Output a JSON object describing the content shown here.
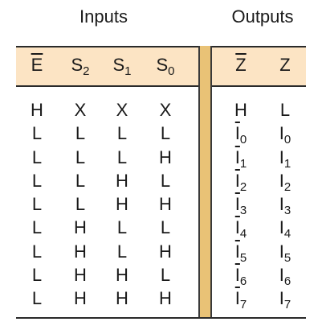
{
  "groups": {
    "inputs": "Inputs",
    "outputs": "Outputs"
  },
  "headers": [
    {
      "text": "E",
      "sub": "",
      "overbar": true
    },
    {
      "text": "S",
      "sub": "2",
      "overbar": false
    },
    {
      "text": "S",
      "sub": "1",
      "overbar": false
    },
    {
      "text": "S",
      "sub": "0",
      "overbar": false
    },
    {
      "text": "Z",
      "sub": "",
      "overbar": true
    },
    {
      "text": "Z",
      "sub": "",
      "overbar": false
    }
  ],
  "rows": [
    {
      "cells": [
        {
          "text": "H"
        },
        {
          "text": "X"
        },
        {
          "text": "X"
        },
        {
          "text": "X"
        },
        {
          "text": "H",
          "overbar": false
        },
        {
          "text": "L"
        }
      ]
    },
    {
      "cells": [
        {
          "text": "L"
        },
        {
          "text": "L"
        },
        {
          "text": "L"
        },
        {
          "text": "L"
        },
        {
          "text": "I",
          "sub": "0",
          "overbar": true
        },
        {
          "text": "I",
          "sub": "0"
        }
      ]
    },
    {
      "cells": [
        {
          "text": "L"
        },
        {
          "text": "L"
        },
        {
          "text": "L"
        },
        {
          "text": "H"
        },
        {
          "text": "I",
          "sub": "1",
          "overbar": true
        },
        {
          "text": "I",
          "sub": "1"
        }
      ]
    },
    {
      "cells": [
        {
          "text": "L"
        },
        {
          "text": "L"
        },
        {
          "text": "H"
        },
        {
          "text": "L"
        },
        {
          "text": "I",
          "sub": "2",
          "overbar": true
        },
        {
          "text": "I",
          "sub": "2"
        }
      ]
    },
    {
      "cells": [
        {
          "text": "L"
        },
        {
          "text": "L"
        },
        {
          "text": "H"
        },
        {
          "text": "H"
        },
        {
          "text": "I",
          "sub": "3",
          "overbar": true
        },
        {
          "text": "I",
          "sub": "3"
        }
      ]
    },
    {
      "cells": [
        {
          "text": "L"
        },
        {
          "text": "H"
        },
        {
          "text": "L"
        },
        {
          "text": "L"
        },
        {
          "text": "I",
          "sub": "4",
          "overbar": true
        },
        {
          "text": "I",
          "sub": "4"
        }
      ]
    },
    {
      "cells": [
        {
          "text": "L"
        },
        {
          "text": "H"
        },
        {
          "text": "L"
        },
        {
          "text": "H"
        },
        {
          "text": "I",
          "sub": "5",
          "overbar": true
        },
        {
          "text": "I",
          "sub": "5"
        }
      ]
    },
    {
      "cells": [
        {
          "text": "L"
        },
        {
          "text": "H"
        },
        {
          "text": "H"
        },
        {
          "text": "L"
        },
        {
          "text": "I",
          "sub": "6",
          "overbar": true
        },
        {
          "text": "I",
          "sub": "6"
        }
      ]
    },
    {
      "cells": [
        {
          "text": "L"
        },
        {
          "text": "H"
        },
        {
          "text": "H"
        },
        {
          "text": "H"
        },
        {
          "text": "I",
          "sub": "7",
          "overbar": true
        },
        {
          "text": "I",
          "sub": "7"
        }
      ]
    }
  ],
  "colors": {
    "header_band": "#fce4c4",
    "separator": "#e9c276",
    "rule": "#2a2a2a"
  }
}
